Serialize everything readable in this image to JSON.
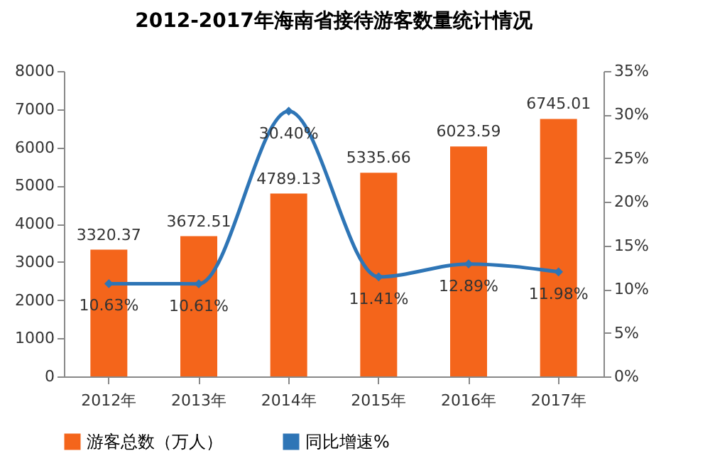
{
  "chart_data": {
    "type": "bar",
    "title": "2012-2017年海南省接待游客数量统计情况",
    "categories": [
      "2012年",
      "2013年",
      "2014年",
      "2015年",
      "2016年",
      "2017年"
    ],
    "series": [
      {
        "name": "游客总数（万人）",
        "color": "#f4651b",
        "values": [
          3320.37,
          3672.51,
          4789.13,
          5335.66,
          6023.59,
          6745.01
        ],
        "value_labels": [
          "3320.37",
          "3672.51",
          "4789.13",
          "5335.66",
          "6023.59",
          "6745.01"
        ]
      },
      {
        "name": "同比增速%",
        "type": "line",
        "axis": "y2",
        "color": "#2e75b6",
        "values": [
          10.63,
          10.61,
          30.4,
          11.41,
          12.89,
          11.98
        ],
        "value_labels": [
          "10.63%",
          "10.61%",
          "30.40%",
          "11.41%",
          "12.89%",
          "11.98%"
        ]
      }
    ],
    "ylim": [
      0,
      8000
    ],
    "yticks": [
      0,
      1000,
      2000,
      3000,
      4000,
      5000,
      6000,
      7000,
      8000
    ],
    "y2lim": [
      0,
      35
    ],
    "y2ticks": [
      {
        "value": 0,
        "label": "0%"
      },
      {
        "value": 5,
        "label": "5%"
      },
      {
        "value": 10,
        "label": "10%"
      },
      {
        "value": 15,
        "label": "15%"
      },
      {
        "value": 20,
        "label": "20%"
      },
      {
        "value": 25,
        "label": "25%"
      },
      {
        "value": 30,
        "label": "30%"
      },
      {
        "value": 35,
        "label": "35%"
      }
    ],
    "legend": "bottom",
    "marker": "diamond",
    "grid": false
  }
}
